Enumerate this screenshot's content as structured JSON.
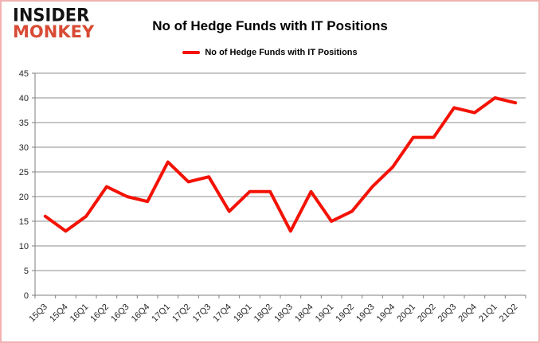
{
  "logo": {
    "line1": "INSIDER",
    "line2": "MONKEY"
  },
  "header": {
    "title": "No of Hedge Funds with IT Positions"
  },
  "legend": {
    "label": "No of Hedge Funds with IT Positions"
  },
  "chart_data": {
    "type": "line",
    "title": "No of Hedge Funds with IT Positions",
    "categories": [
      "15Q3",
      "15Q4",
      "16Q1",
      "16Q2",
      "16Q3",
      "16Q4",
      "17Q1",
      "17Q2",
      "17Q3",
      "17Q4",
      "18Q1",
      "18Q2",
      "18Q3",
      "18Q4",
      "19Q1",
      "19Q2",
      "19Q3",
      "19Q4",
      "20Q1",
      "20Q2",
      "20Q3",
      "20Q4",
      "21Q1",
      "21Q2"
    ],
    "series": [
      {
        "name": "No of Hedge Funds with IT Positions",
        "color": "#f31205",
        "values": [
          16,
          13,
          16,
          22,
          20,
          19,
          27,
          23,
          24,
          17,
          21,
          21,
          13,
          21,
          15,
          17,
          22,
          26,
          32,
          32,
          38,
          37,
          40,
          39
        ]
      }
    ],
    "xlabel": "",
    "ylabel": "",
    "ylim": [
      0,
      45
    ],
    "ytick_step": 5,
    "grid": true,
    "legend_position": "top"
  },
  "colors": {
    "logo_red": "#d84b35",
    "series_red": "#f31205",
    "border_pink": "#f2b2b2",
    "grid_gray": "#8c8c8c",
    "axis_gray": "#7f7f7f",
    "label_text": "#262626"
  }
}
